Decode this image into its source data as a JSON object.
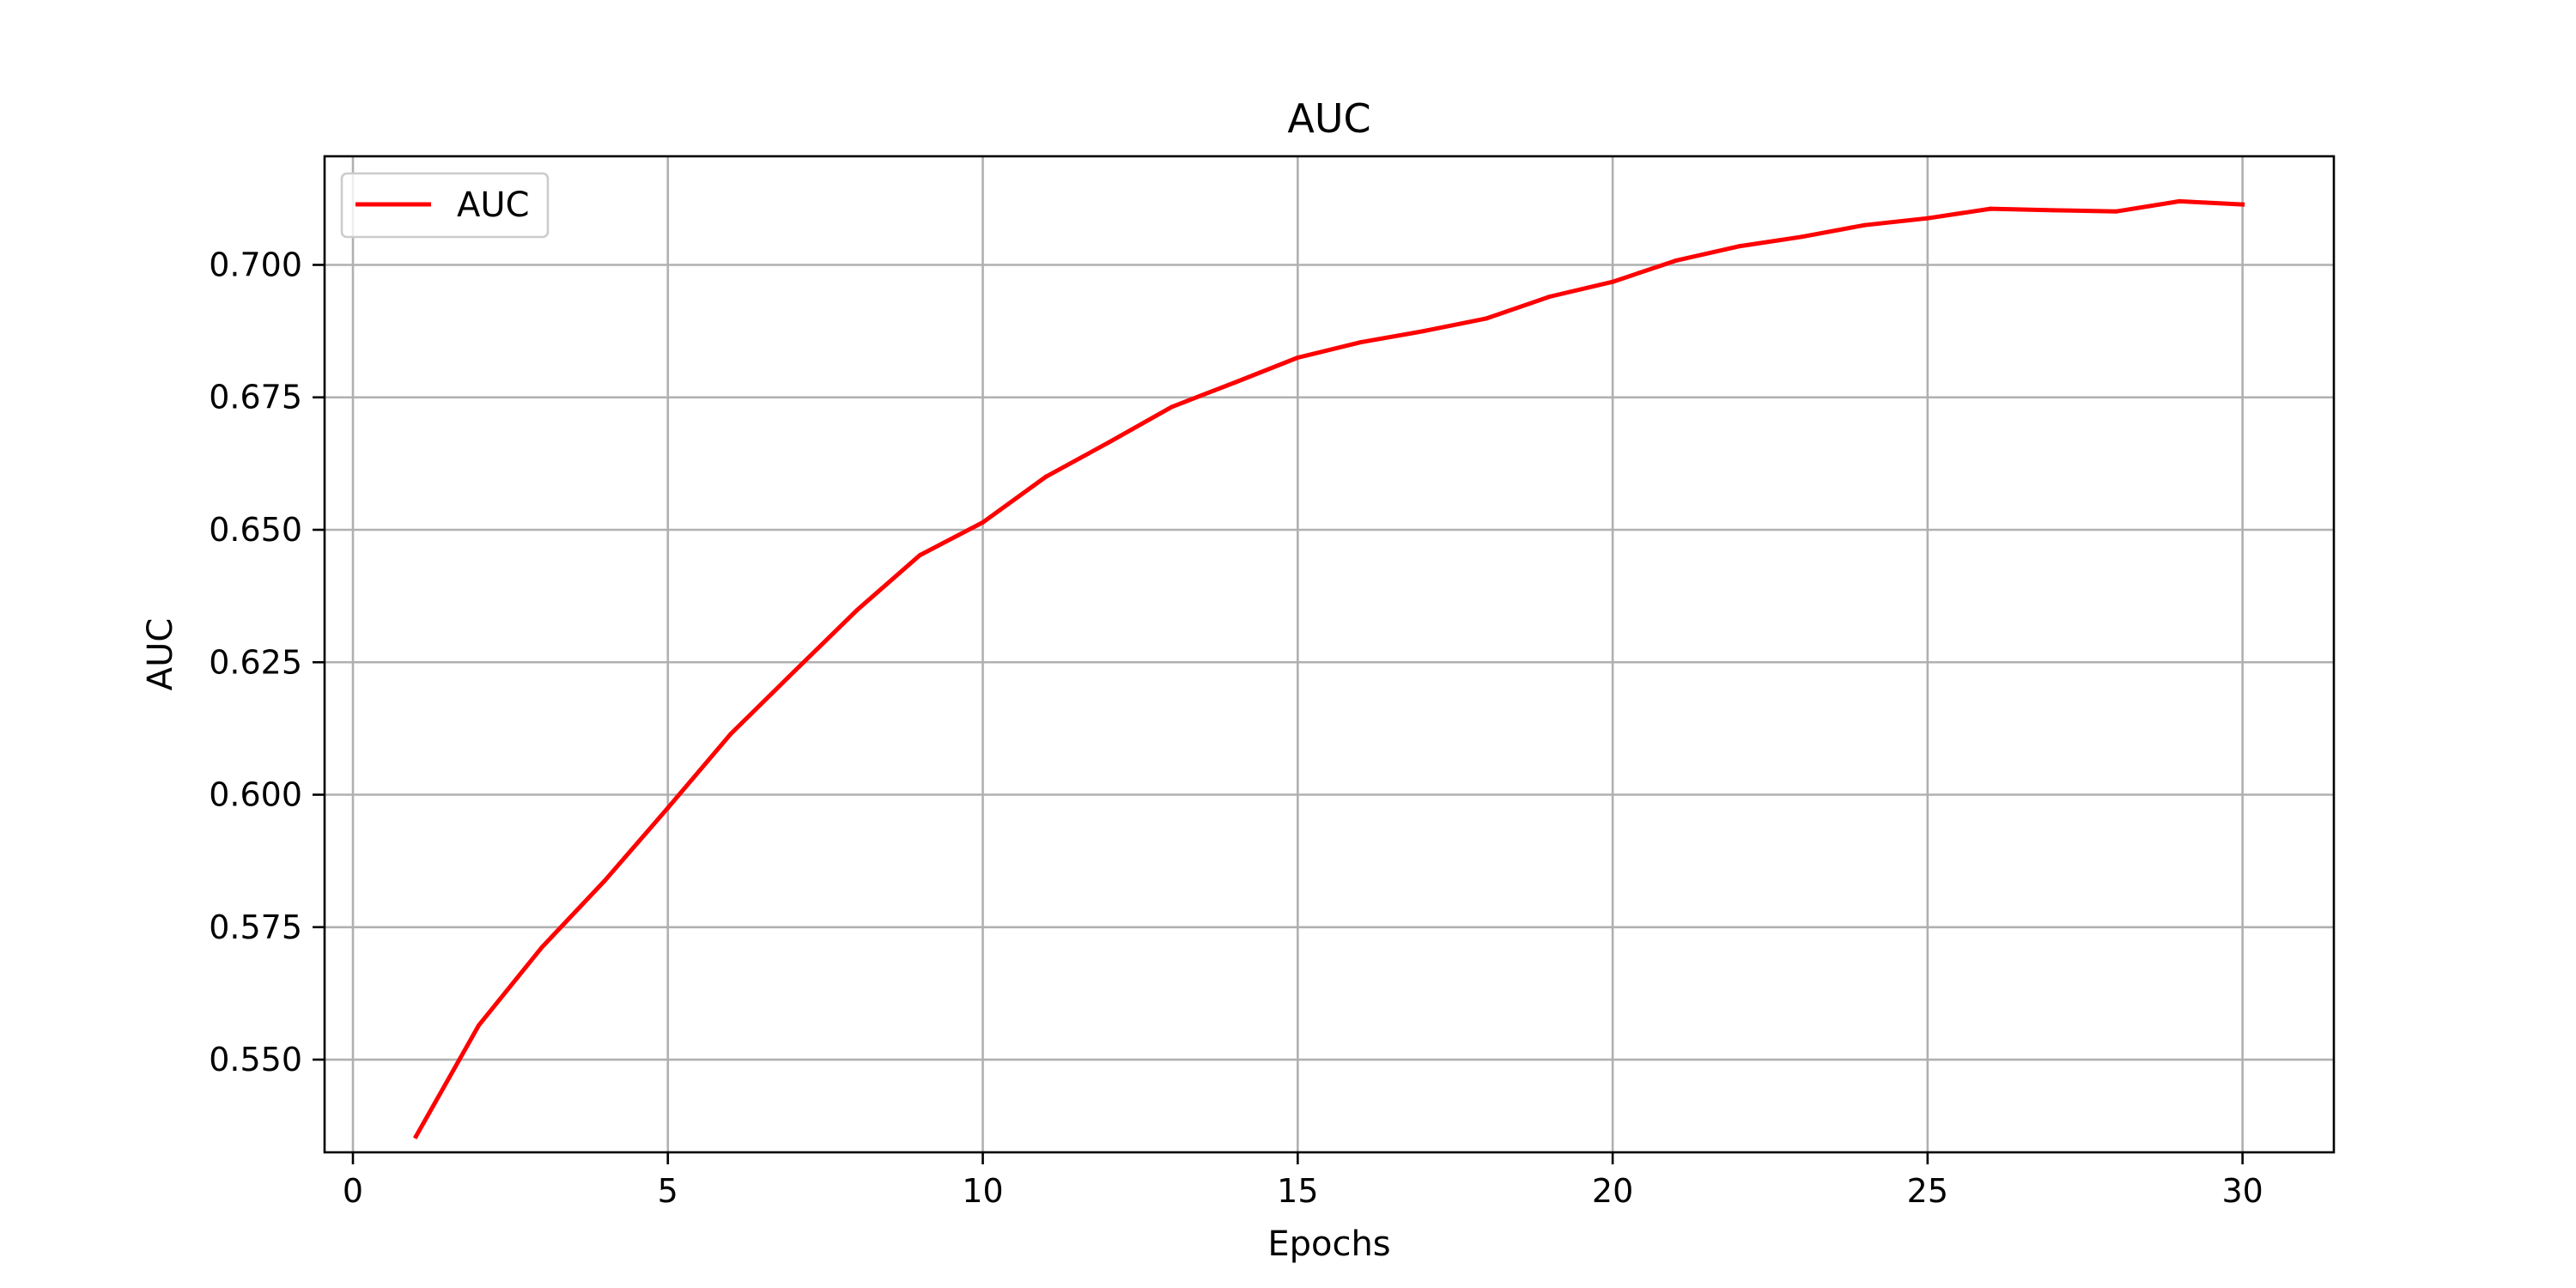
{
  "chart_data": {
    "type": "line",
    "title": "AUC",
    "xlabel": "Epochs",
    "ylabel": "AUC",
    "xlim": [
      -0.45,
      31.45
    ],
    "ylim": [
      0.5325,
      0.7205
    ],
    "xticks": [
      0,
      5,
      10,
      15,
      20,
      25,
      30
    ],
    "yticks": [
      0.55,
      0.575,
      0.6,
      0.625,
      0.65,
      0.675,
      0.7
    ],
    "ytick_labels": [
      "0.550",
      "0.575",
      "0.600",
      "0.625",
      "0.650",
      "0.675",
      "0.700"
    ],
    "grid": true,
    "legend_position": "top-left",
    "series": [
      {
        "name": "AUC",
        "color": "#ff0000",
        "x": [
          1,
          2,
          3,
          4,
          5,
          6,
          7,
          8,
          9,
          10,
          11,
          12,
          13,
          14,
          15,
          16,
          17,
          18,
          19,
          20,
          21,
          22,
          23,
          24,
          25,
          26,
          27,
          28,
          29,
          30
        ],
        "y": [
          0.5355,
          0.5565,
          0.5712,
          0.5838,
          0.5975,
          0.6115,
          0.6232,
          0.6348,
          0.6452,
          0.6514,
          0.66,
          0.6665,
          0.6732,
          0.6778,
          0.6825,
          0.6854,
          0.6875,
          0.6899,
          0.694,
          0.6968,
          0.7008,
          0.7035,
          0.7053,
          0.7075,
          0.7088,
          0.7106,
          0.7103,
          0.7101,
          0.712,
          0.7114
        ]
      }
    ]
  }
}
